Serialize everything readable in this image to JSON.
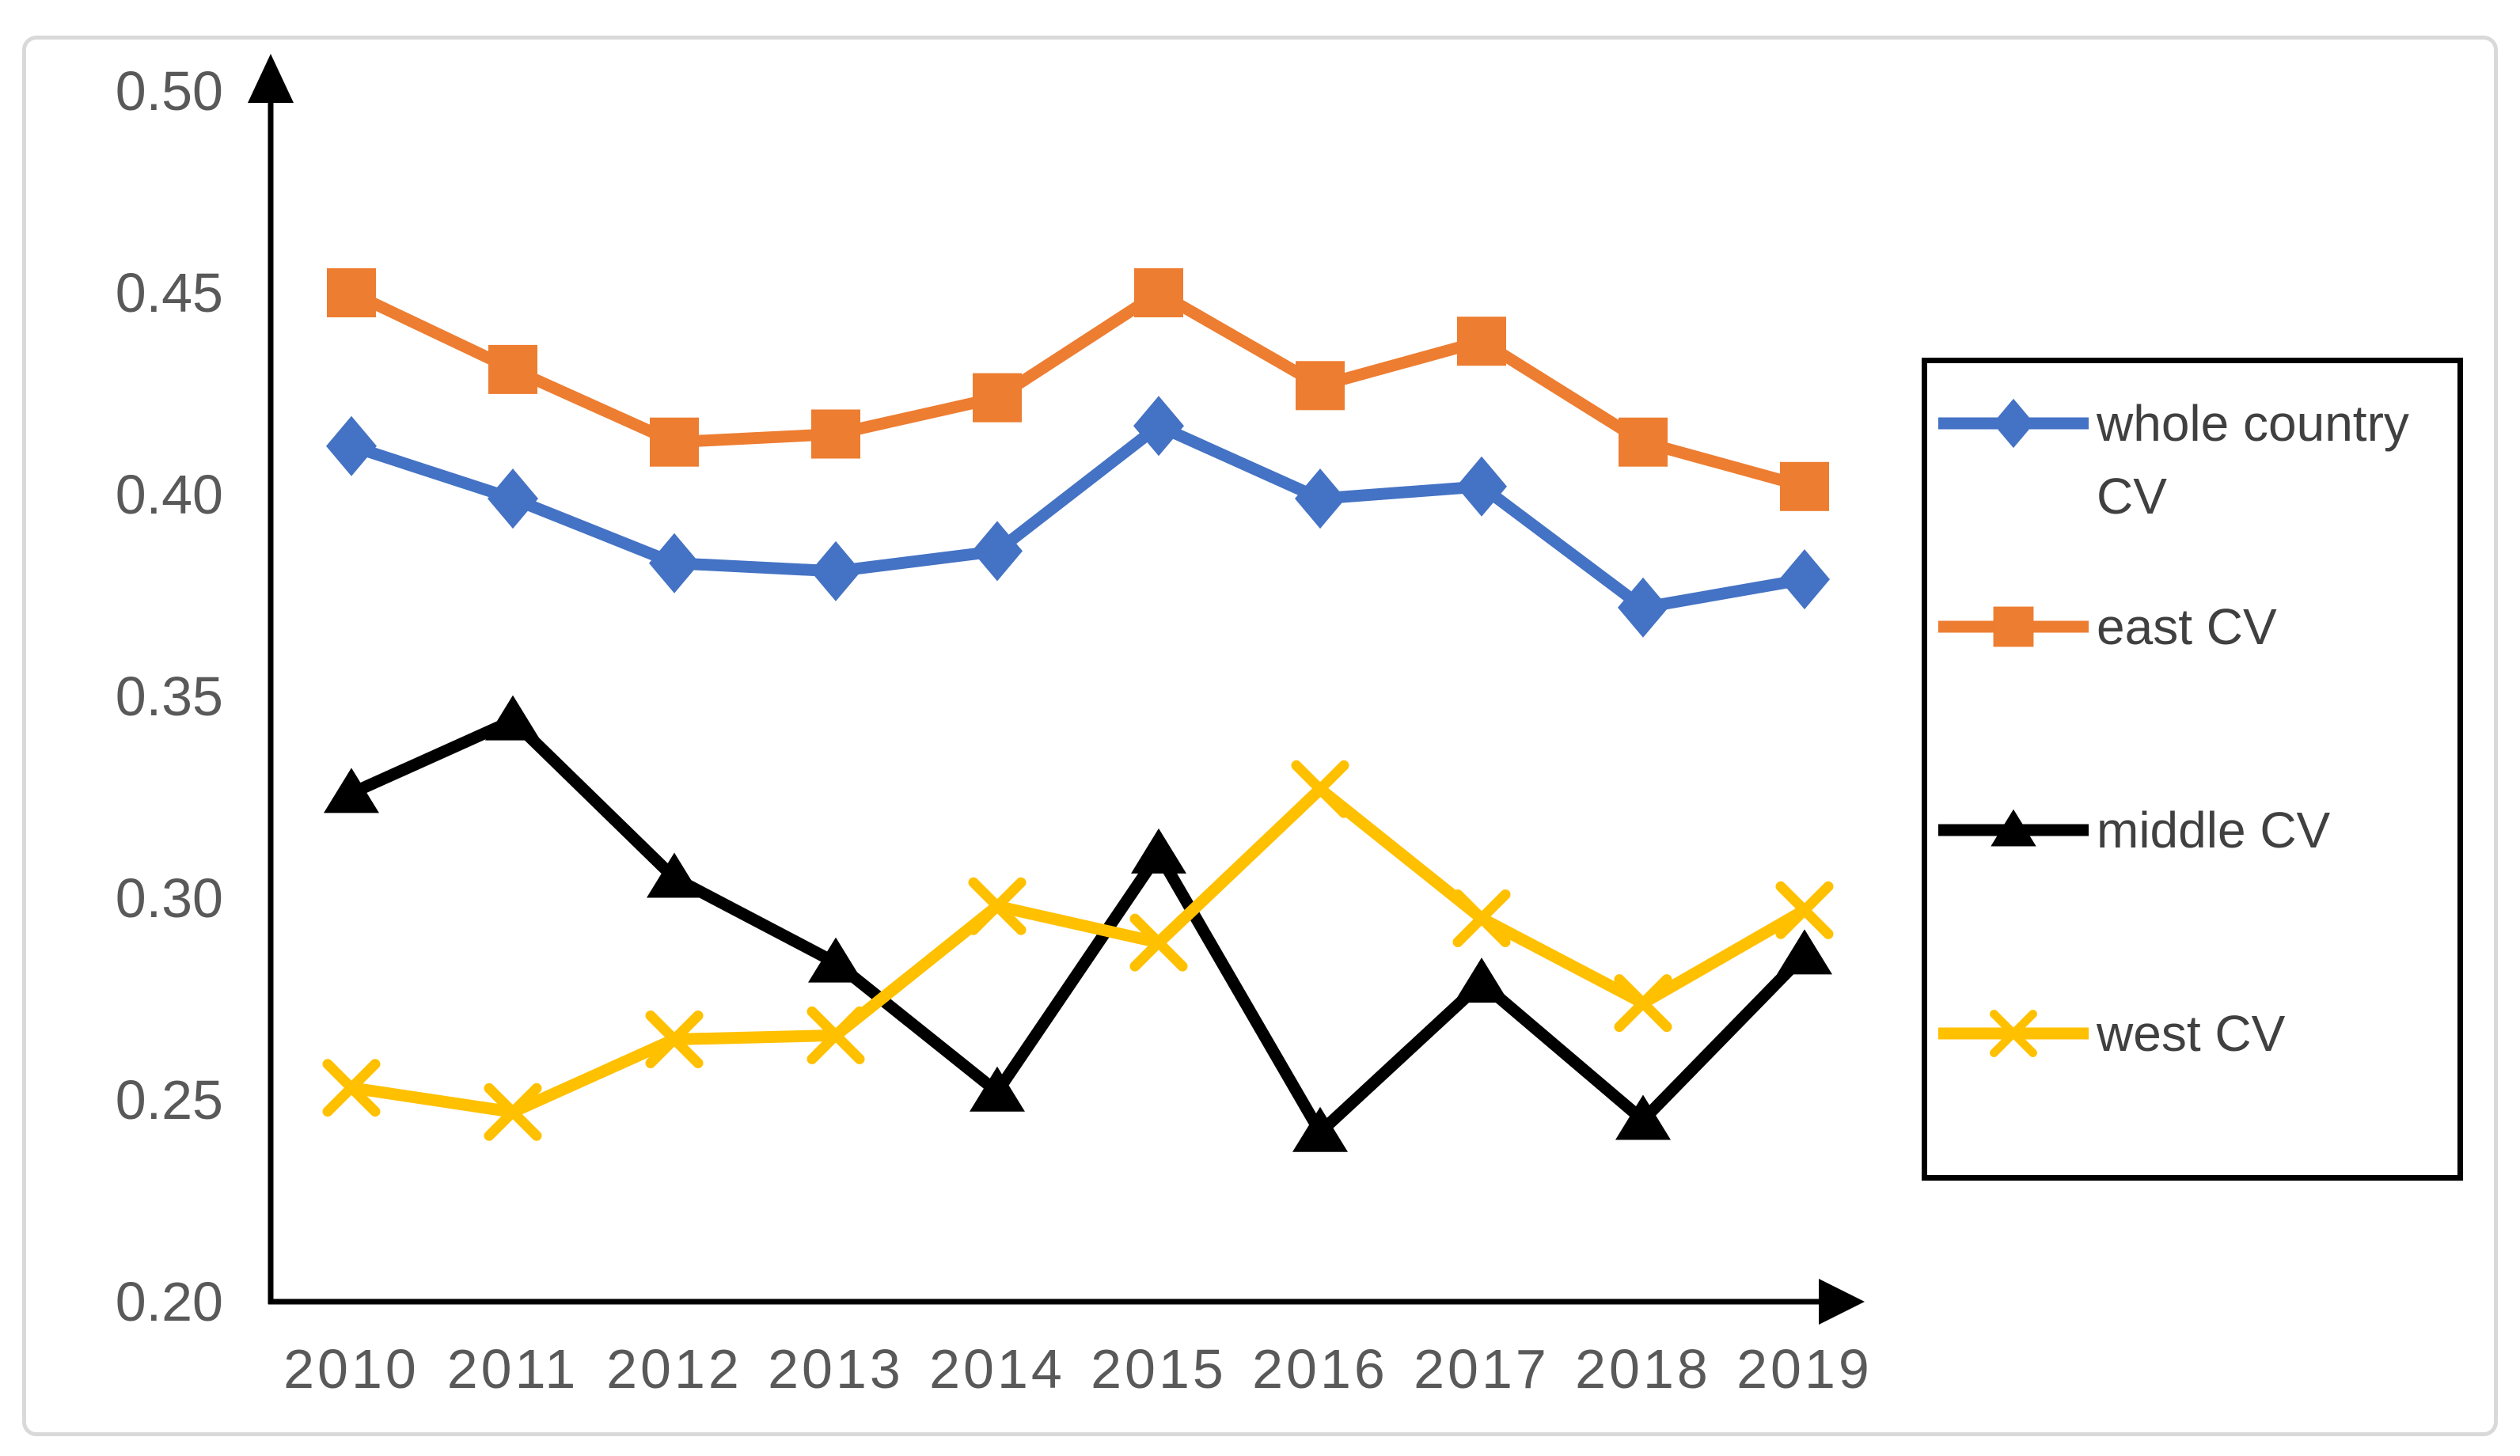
{
  "figure": {
    "background": "#ffffff",
    "border_color": "#d9d9d9"
  },
  "chart_data": {
    "type": "line",
    "x": [
      "2010",
      "2011",
      "2012",
      "2013",
      "2014",
      "2015",
      "2016",
      "2017",
      "2018",
      "2019"
    ],
    "series": [
      {
        "name": "whole country CV",
        "marker": "diamond",
        "color": "#4472C4",
        "values": [
          0.412,
          0.399,
          0.383,
          0.381,
          0.386,
          0.417,
          0.399,
          0.402,
          0.372,
          0.379
        ]
      },
      {
        "name": "east CV",
        "marker": "square",
        "color": "#ED7D31",
        "values": [
          0.45,
          0.431,
          0.413,
          0.415,
          0.424,
          0.45,
          0.427,
          0.438,
          0.413,
          0.402
        ]
      },
      {
        "name": "middle CV",
        "marker": "triangle",
        "color": "#000000",
        "values": [
          0.326,
          0.344,
          0.305,
          0.284,
          0.252,
          0.311,
          0.242,
          0.279,
          0.245,
          0.286
        ]
      },
      {
        "name": "west CV",
        "marker": "x",
        "color": "#FFC000",
        "values": [
          0.253,
          0.247,
          0.265,
          0.266,
          0.298,
          0.289,
          0.327,
          0.295,
          0.274,
          0.297
        ]
      }
    ],
    "title": "",
    "xlabel": "",
    "ylabel": "",
    "ylim": [
      0.2,
      0.5
    ],
    "ytick_step": 0.05,
    "ytick_labels": [
      "0.50",
      "0.45",
      "0.40",
      "0.35",
      "0.30",
      "0.25",
      "0.20"
    ],
    "grid": false,
    "legend_position": "right",
    "axis_color": "#000000",
    "tick_label_color": "#595959",
    "legend_text_color": "#404040"
  }
}
